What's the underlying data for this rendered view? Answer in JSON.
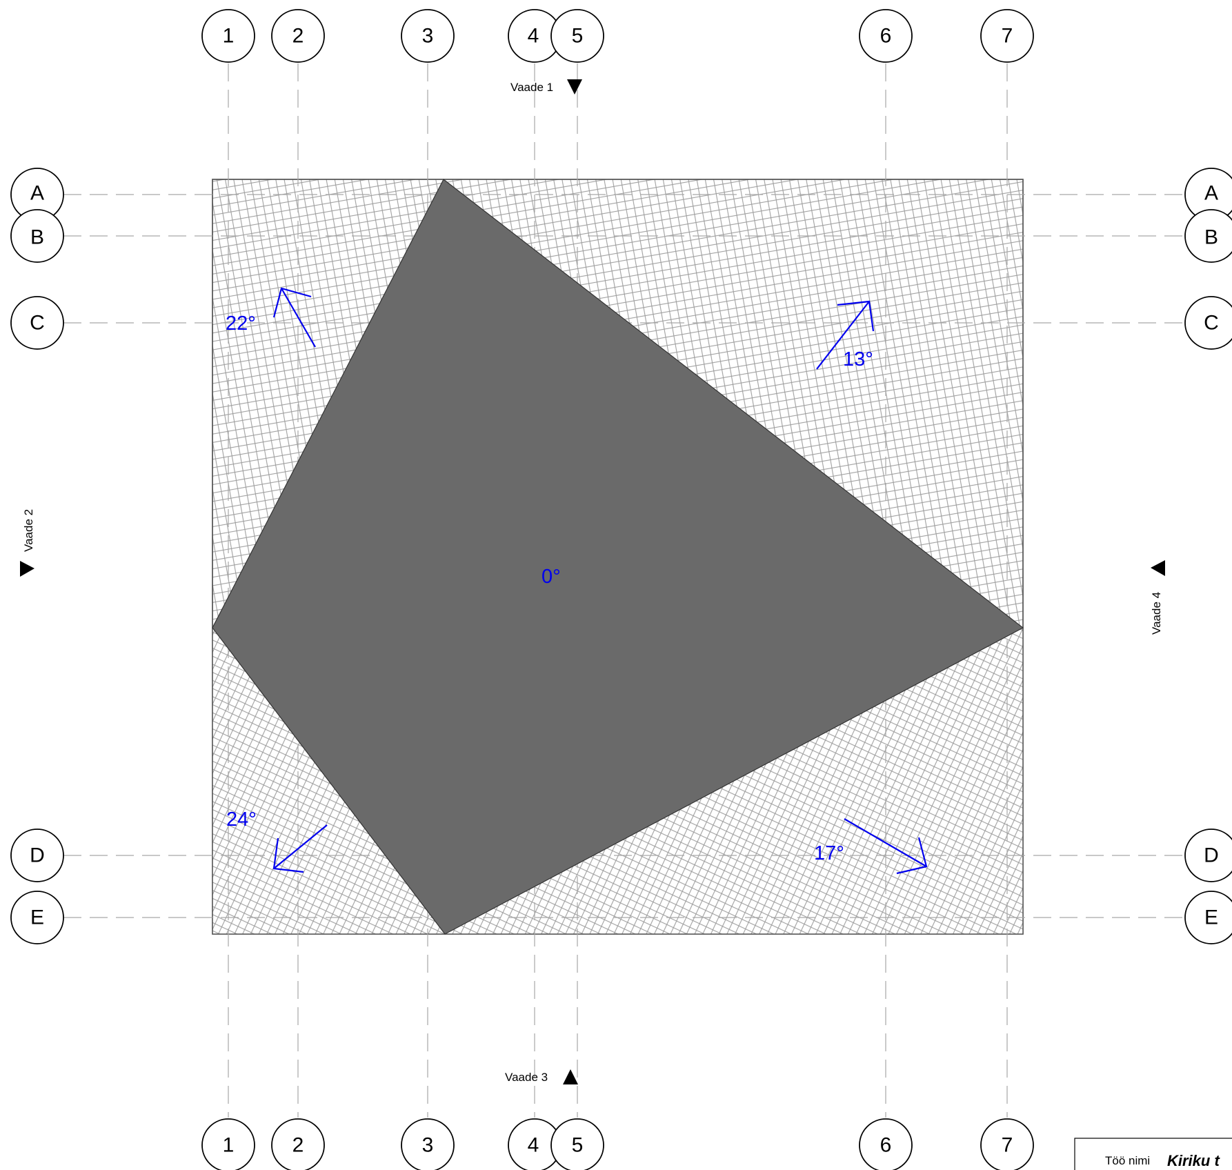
{
  "grid": {
    "columns": [
      "1",
      "2",
      "3",
      "4",
      "5",
      "6",
      "7"
    ],
    "rows": [
      "A",
      "B",
      "C",
      "D",
      "E"
    ]
  },
  "views": {
    "top": "Vaade 1",
    "left": "Vaade 2",
    "bottom": "Vaade 3",
    "right": "Vaade 4"
  },
  "slopes": {
    "center": "0°",
    "top_left": "22°",
    "top_right": "13°",
    "bottom_left": "24°",
    "bottom_right": "17°"
  },
  "title_block": {
    "label": "Töö nimi",
    "value": "Kiriku t"
  },
  "colors": {
    "roof_flat": "#6a6a6a",
    "slope_annotation": "#0000ee",
    "grid": "#a6a6a6"
  }
}
